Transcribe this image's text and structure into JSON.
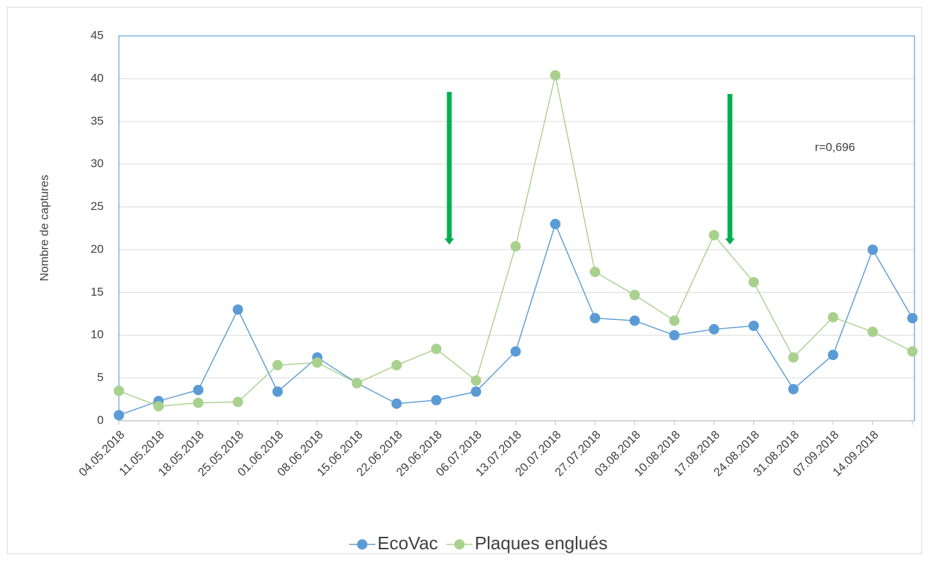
{
  "chart_data": {
    "type": "line",
    "categories": [
      "04.05.2018",
      "11.05.2018",
      "18.05.2018",
      "25.05.2018",
      "01.06.2018",
      "08.06.2018",
      "15.06.2018",
      "22.06.2018",
      "29.06.2018",
      "06.07.2018",
      "13.07.2018",
      "20.07.2018",
      "27.07.2018",
      "03.08.2018",
      "10.08.2018",
      "17.08.2018",
      "24.08.2018",
      "31.08.2018",
      "07.09.2018",
      "14.09.2018",
      null
    ],
    "series": [
      {
        "name": "EcoVac",
        "color": "#5b9bd5",
        "values": [
          0.65,
          2.3,
          3.6,
          13,
          3.4,
          7.4,
          4.4,
          2.0,
          2.4,
          3.4,
          8.1,
          23,
          12,
          11.7,
          10,
          10.7,
          11.1,
          3.7,
          7.7,
          20,
          12
        ]
      },
      {
        "name": "Plaques englués",
        "color": "#a9d18e",
        "values": [
          3.5,
          1.7,
          2.1,
          2.2,
          6.5,
          6.8,
          4.4,
          6.5,
          8.4,
          4.7,
          20.4,
          40.4,
          17.4,
          14.7,
          11.7,
          21.7,
          16.2,
          7.4,
          12.1,
          10.4,
          8.1
        ]
      }
    ],
    "y_label": "Nombre de captures",
    "annotation": "r=0,696",
    "ylim": [
      0,
      45
    ],
    "yticks": [
      0,
      5,
      10,
      15,
      20,
      25,
      30,
      35,
      40,
      45
    ],
    "grid": true,
    "legend": "bottom"
  }
}
